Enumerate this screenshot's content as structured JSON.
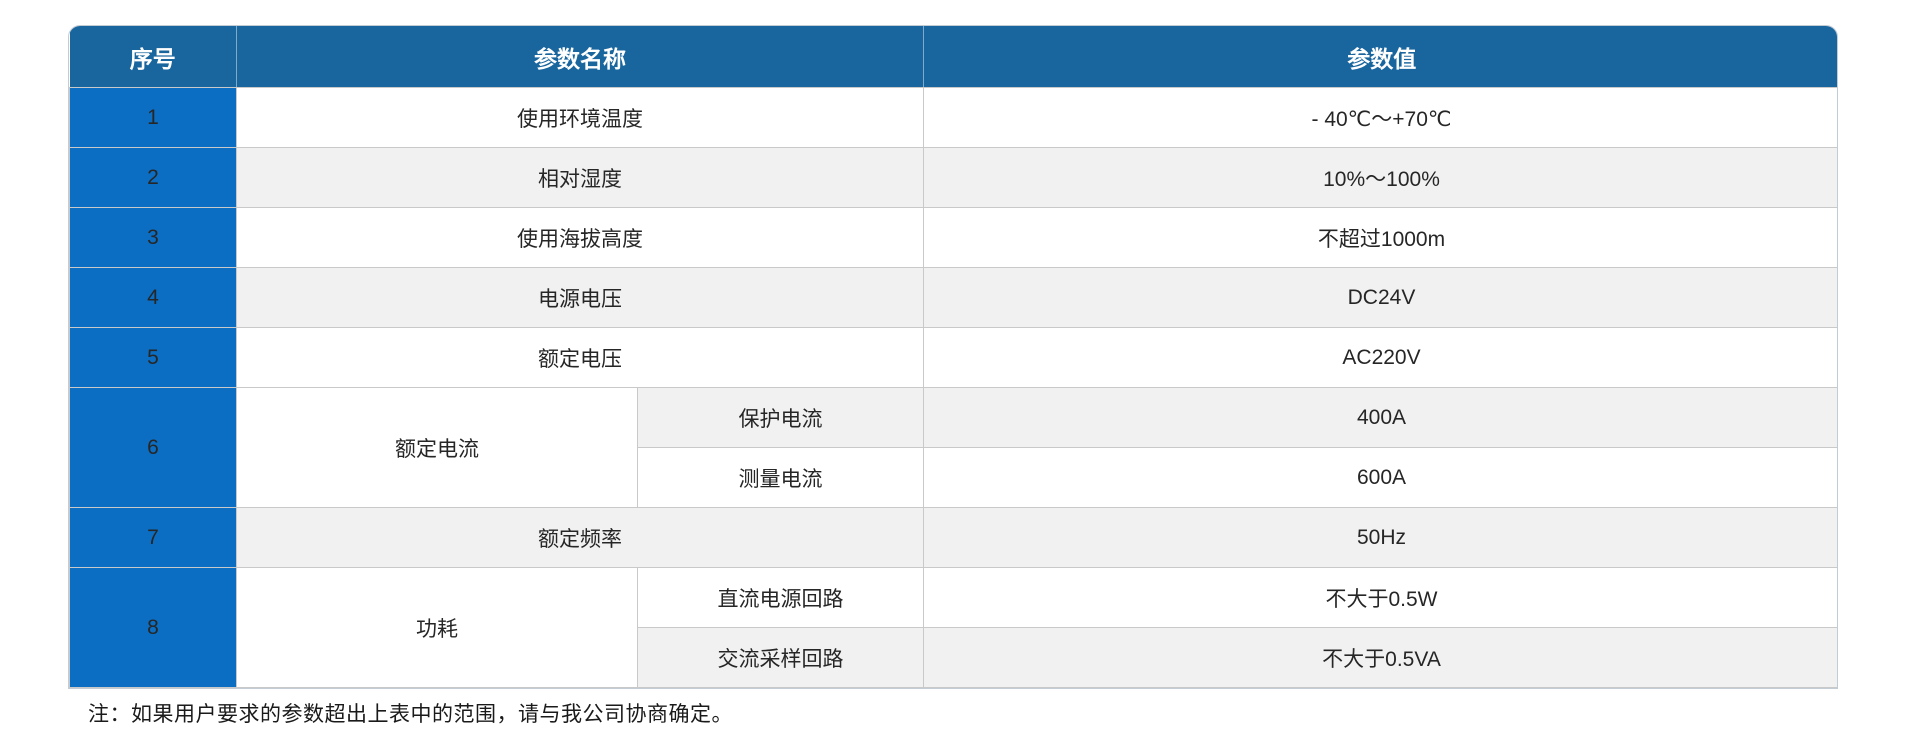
{
  "table": {
    "headers": {
      "no": "序号",
      "name": "参数名称",
      "value": "参数值"
    },
    "rows": [
      {
        "no": "1",
        "name": "使用环境温度",
        "value": "- 40℃～+70℃"
      },
      {
        "no": "2",
        "name": "相对湿度",
        "value": "10%～100%"
      },
      {
        "no": "3",
        "name": "使用海拔高度",
        "value": "不超过1000m"
      },
      {
        "no": "4",
        "name": "电源电压",
        "value": "DC24V"
      },
      {
        "no": "5",
        "name": "额定电压",
        "value": "AC220V"
      },
      {
        "no": "6",
        "name": "额定电流",
        "sub1": "保护电流",
        "value1": "400A",
        "sub2": "测量电流",
        "value2": "600A"
      },
      {
        "no": "7",
        "name": "额定频率",
        "value": "50Hz"
      },
      {
        "no": "8",
        "name": "功耗",
        "sub1": "直流电源回路",
        "value1": "不大于0.5W",
        "sub2": "交流采样回路",
        "value2": "不大于0.5VA"
      }
    ]
  },
  "note": "注：如果用户要求的参数超出上表中的范围，请与我公司协商确定。",
  "colors": {
    "header_bg": "#19659e",
    "serial_bg": "#0c6ec2",
    "row_alt_bg": "#f1f1f1",
    "grid_border": "#c9c9c9"
  }
}
